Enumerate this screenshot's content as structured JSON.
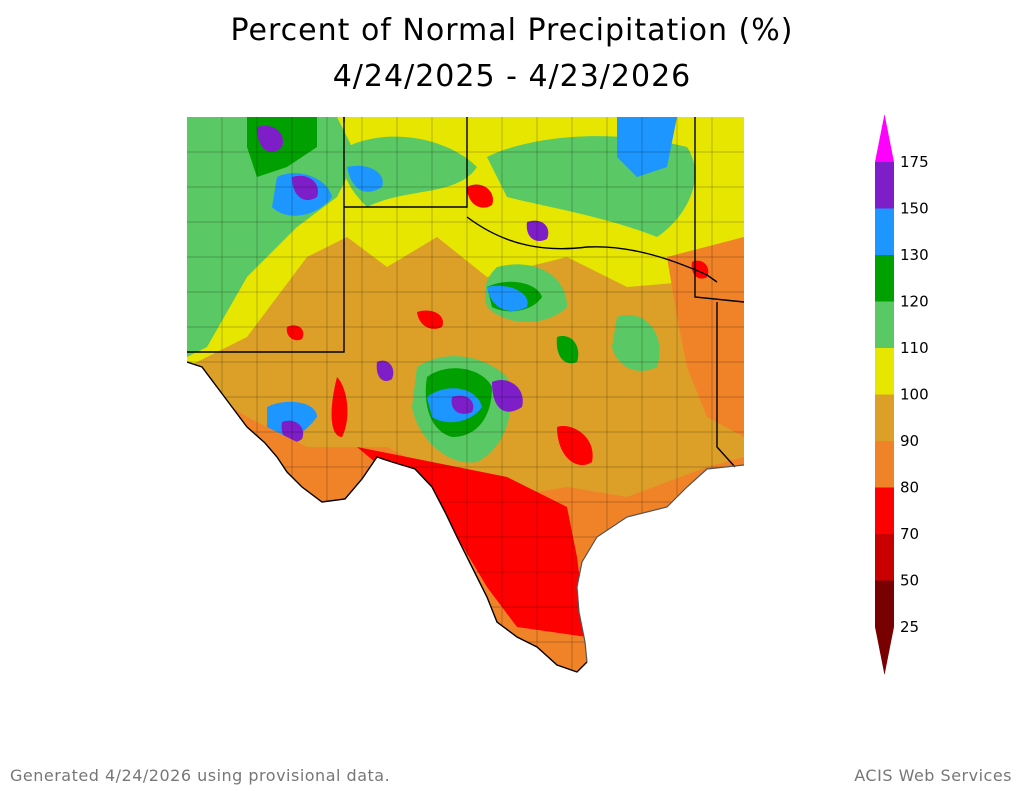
{
  "title": {
    "line1": "Percent of Normal Precipitation (%)",
    "line2": "4/24/2025 - 4/23/2026"
  },
  "legend": {
    "labels": [
      "175",
      "150",
      "130",
      "120",
      "110",
      "100",
      "90",
      "80",
      "70",
      "50",
      "25"
    ],
    "colors": [
      "#ff00ff",
      "#7d1ec8",
      "#1e96ff",
      "#00a000",
      "#5ac864",
      "#e6e600",
      "#dca028",
      "#f08228",
      "#ff0000",
      "#c80000",
      "#780000"
    ]
  },
  "map": {
    "region": "Texas and surrounding areas",
    "colors": {
      "yellow": "#e6e600",
      "light_green": "#5ac864",
      "green": "#00a000",
      "blue": "#1e96ff",
      "purple": "#7d1ec8",
      "gold": "#dca028",
      "orange": "#f08228",
      "red": "#ff0000"
    }
  },
  "footer": {
    "left": "Generated 4/24/2026  using provisional data.",
    "right": "ACIS Web Services"
  }
}
